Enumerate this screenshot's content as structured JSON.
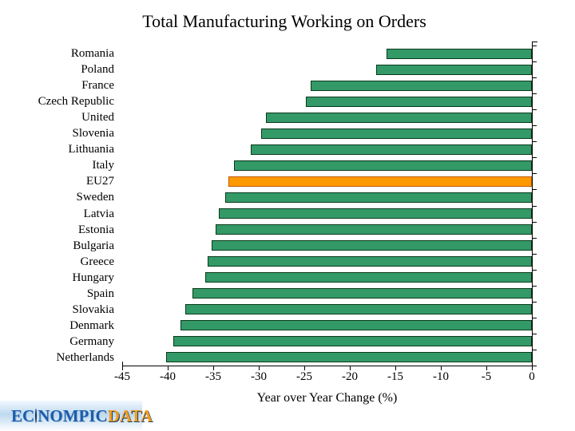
{
  "title": "Total Manufacturing Working on Orders",
  "chart_data": {
    "type": "bar",
    "orientation": "horizontal",
    "title": "Total Manufacturing Working on Orders",
    "xlabel": "Year over Year Change (%)",
    "ylabel": "",
    "xlim": [
      -45,
      0
    ],
    "xticks": [
      -45,
      -40,
      -35,
      -30,
      -25,
      -20,
      -15,
      -10,
      -5,
      0
    ],
    "grid": false,
    "legend": false,
    "categories": [
      "Romania",
      "Poland",
      "France",
      "Czech Republic",
      "United",
      "Slovenia",
      "Lithuania",
      "Italy",
      "EU27",
      "Sweden",
      "Latvia",
      "Estonia",
      "Bulgaria",
      "Greece",
      "Hungary",
      "Spain",
      "Slovakia",
      "Denmark",
      "Germany",
      "Netherlands"
    ],
    "values": [
      -16.0,
      -17.1,
      -24.3,
      -24.8,
      -29.2,
      -29.7,
      -30.9,
      -32.7,
      -33.3,
      -33.7,
      -34.4,
      -34.7,
      -35.2,
      -35.6,
      -35.9,
      -37.3,
      -38.1,
      -38.6,
      -39.4,
      -40.2
    ],
    "highlight_category": "EU27",
    "highlight_index": 8,
    "colors": {
      "bar_fill": "#339966",
      "bar_border": "#0a3b1e",
      "highlight_fill": "#FF9900",
      "highlight_border": "#C05A00",
      "axis": "#000000"
    }
  },
  "logo": {
    "text_ec": "EC",
    "text_nompic": "NOMPIC",
    "text_data": "DATA"
  }
}
